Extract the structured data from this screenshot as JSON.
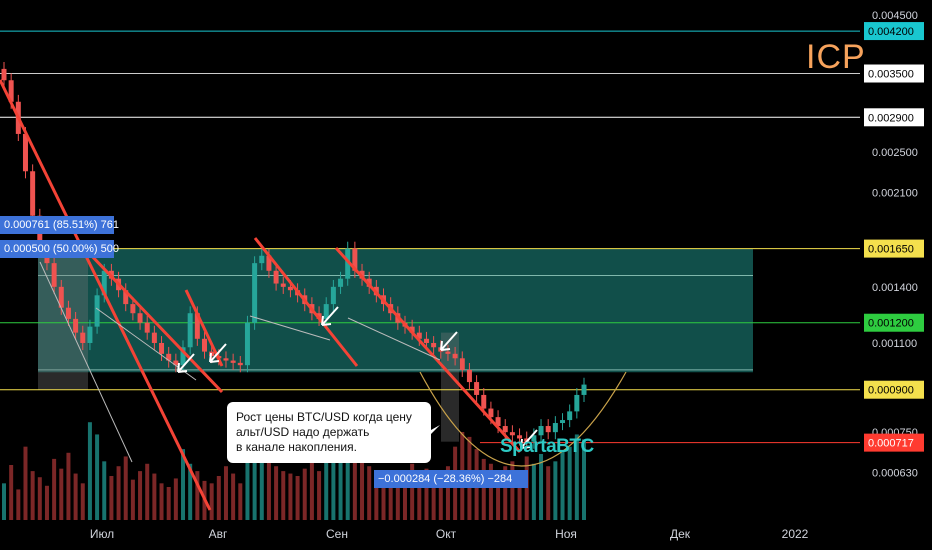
{
  "ticker": "ICP",
  "watermark": "SpartaBTC",
  "note": {
    "lines": [
      "Рост цены BTC/USD когда цену",
      "альт/USD надо держать",
      "в канале накопления."
    ]
  },
  "measures": [
    {
      "text": "0.000761 (85.51%) 761"
    },
    {
      "text": "0.000500 (50.00%) 500"
    },
    {
      "text": "−0.000284 (−28.36%) −284"
    }
  ],
  "chart_data": {
    "type": "candlestick",
    "title": "",
    "x_labels": [
      "Июл",
      "Авг",
      "Сен",
      "Окт",
      "Ноя",
      "Дек",
      "2022"
    ],
    "y_ticks": [
      "0.004500",
      "0.003500",
      "0.002900",
      "0.002500",
      "0.002100",
      "0.001400",
      "0.001100",
      "0.000750",
      "0.000630"
    ],
    "levels": [
      {
        "value": "0.004200",
        "color": "#19c7cf",
        "label_bg": "#19c7cf",
        "label_color": "#000000"
      },
      {
        "value": "0.003500",
        "color": "#cccccc",
        "label_bg": "#ffffff",
        "label_color": "#000000"
      },
      {
        "value": "0.002900",
        "color": "#ffffff",
        "label_bg": "#ffffff",
        "label_color": "#000000"
      },
      {
        "value": "0.001650",
        "color": "#f4e04d",
        "label_bg": "#f4e04d",
        "label_color": "#000000"
      },
      {
        "value": "0.001200",
        "color": "#2ecc40",
        "label_bg": "#2ecc40",
        "label_color": "#000000"
      },
      {
        "value": "0.000900",
        "color": "#f4e04d",
        "label_bg": "#f4e04d",
        "label_color": "#000000"
      },
      {
        "value": "0.000717",
        "color": "#ff3b30",
        "label_bg": "#ff3b30",
        "label_color": "#ffffff"
      }
    ],
    "channel": {
      "top": 0.00165,
      "bottom": 0.00097,
      "color": "#1f8f86"
    },
    "series": [
      {
        "name": "ICP/BTC",
        "values": [
          0.0034,
          0.0031,
          0.0027,
          0.0023,
          0.0019,
          0.00165,
          0.00155,
          0.0014,
          0.00128,
          0.00122,
          0.00115,
          0.0011,
          0.00118,
          0.00135,
          0.0015,
          0.00145,
          0.00138,
          0.0013,
          0.00125,
          0.0012,
          0.00115,
          0.0011,
          0.00105,
          0.00102,
          0.001,
          0.00108,
          0.00125,
          0.00112,
          0.00106,
          0.00104,
          0.00103,
          0.00102,
          0.00101,
          0.001,
          0.0012,
          0.00155,
          0.0016,
          0.0015,
          0.00142,
          0.0014,
          0.00138,
          0.00135,
          0.0013,
          0.00125,
          0.00122,
          0.0013,
          0.0014,
          0.00145,
          0.00165,
          0.0015,
          0.00145,
          0.0014,
          0.00135,
          0.0013,
          0.00125,
          0.0012,
          0.00118,
          0.00115,
          0.00112,
          0.0011,
          0.00108,
          0.00106,
          0.00105,
          0.00103,
          0.00098,
          0.00093,
          0.00088,
          0.00083,
          0.0008,
          0.00077,
          0.00075,
          0.00074,
          0.00073,
          0.00072,
          0.00074,
          0.00077,
          0.00075,
          0.00078,
          0.00079,
          0.00082,
          0.00088,
          0.00092
        ]
      }
    ],
    "volume": [
      30,
      45,
      25,
      60,
      40,
      35,
      28,
      50,
      42,
      55,
      38,
      30,
      80,
      70,
      48,
      36,
      44,
      52,
      33,
      40,
      46,
      38,
      30,
      27,
      34,
      58,
      46,
      40,
      32,
      30,
      36,
      44,
      38,
      30,
      65,
      90,
      72,
      50,
      44,
      40,
      38,
      36,
      42,
      48,
      40,
      55,
      60,
      52,
      88,
      66,
      48,
      44,
      40,
      38,
      36,
      34,
      40,
      46,
      38,
      42,
      40,
      36,
      44,
      60,
      72,
      68,
      58,
      50,
      46,
      40,
      44,
      48,
      40,
      52,
      46,
      54,
      44,
      48,
      56,
      60,
      70,
      66
    ]
  }
}
